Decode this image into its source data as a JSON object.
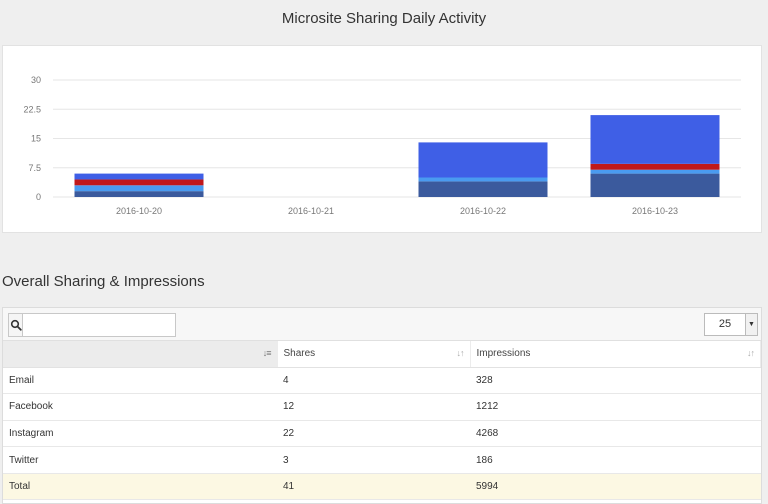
{
  "chart": {
    "title": "Microsite Sharing Daily Activity"
  },
  "chart_data": {
    "type": "bar",
    "stacked": true,
    "categories": [
      "2016-10-20",
      "2016-10-21",
      "2016-10-22",
      "2016-10-23"
    ],
    "series": [
      {
        "color": "#3b5a9d",
        "values": [
          1.5,
          0,
          4,
          6
        ]
      },
      {
        "color": "#4a9bf0",
        "values": [
          1.5,
          0,
          1,
          1
        ]
      },
      {
        "color": "#c0181b",
        "values": [
          1.5,
          0,
          0,
          1.5
        ]
      },
      {
        "color": "#3f5fe6",
        "values": [
          1.5,
          0,
          9,
          12.5
        ]
      }
    ],
    "ylim": [
      0,
      30
    ],
    "yticks": [
      "0",
      "7.5",
      "15",
      "22.5",
      "30"
    ],
    "grid": true
  },
  "section": {
    "title": "Overall Sharing & Impressions"
  },
  "toolbar": {
    "search_placeholder": "",
    "page_size": "25"
  },
  "table": {
    "headers": [
      "",
      "Shares",
      "Impressions"
    ],
    "rows": [
      [
        "Email",
        "4",
        "328"
      ],
      [
        "Facebook",
        "12",
        "1212"
      ],
      [
        "Instagram",
        "22",
        "4268"
      ],
      [
        "Twitter",
        "3",
        "186"
      ]
    ],
    "total": [
      "Total",
      "41",
      "5994"
    ]
  }
}
